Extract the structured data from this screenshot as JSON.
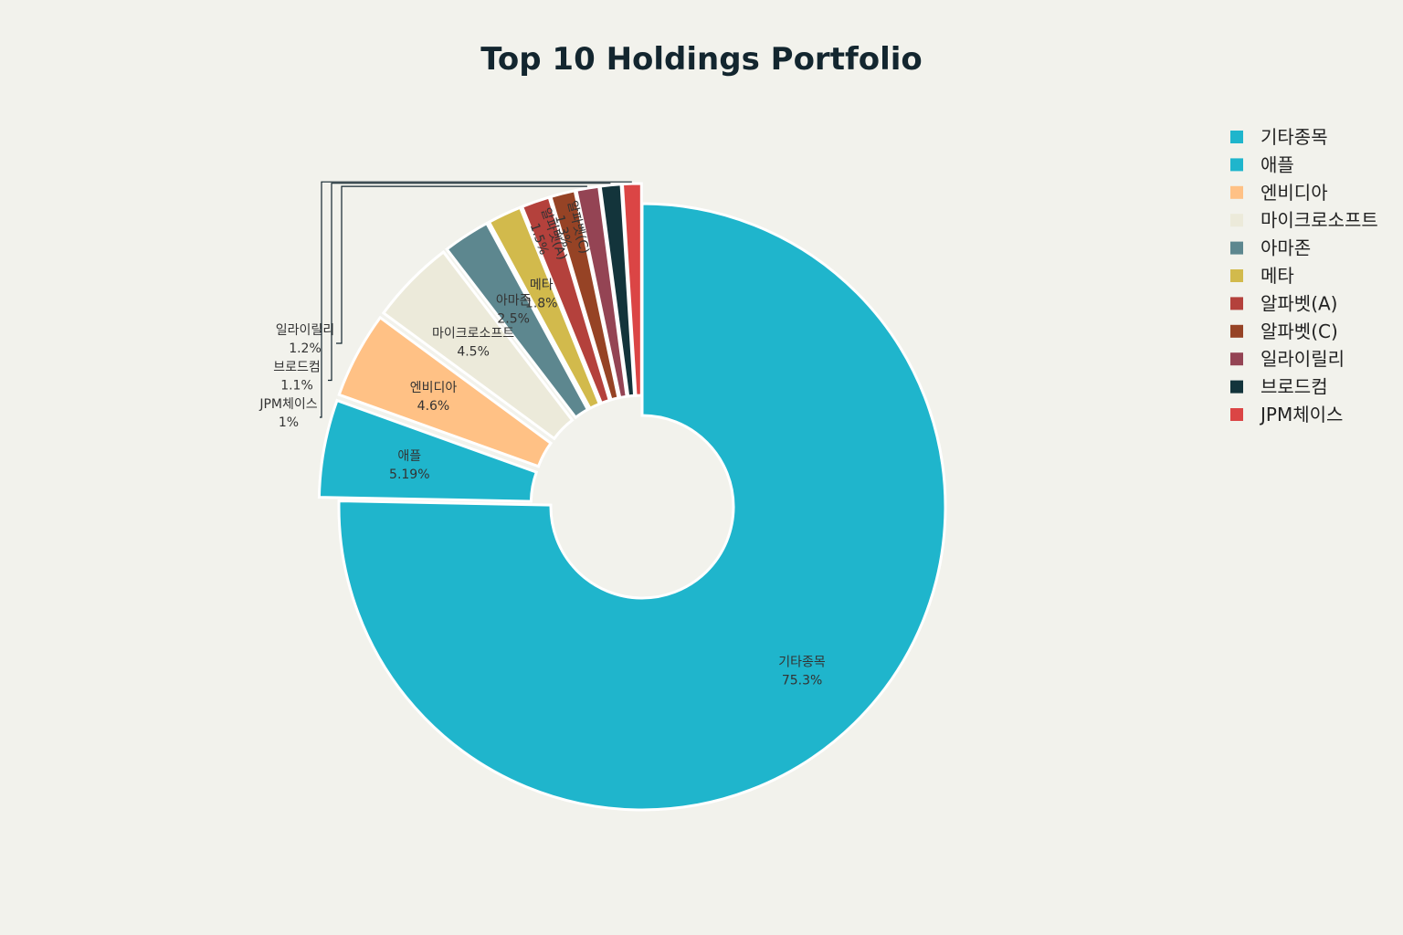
{
  "chart_data": {
    "type": "pie",
    "title": "Top 10 Holdings Portfolio",
    "hole": 0.3,
    "legend_position": "right",
    "slices": [
      {
        "label": "기타종목",
        "value": 75.3,
        "display": "75.3%",
        "color": "#1fb5cc",
        "pull": 0
      },
      {
        "label": "애플",
        "value": 5.19,
        "display": "5.19%",
        "color": "#1fb5cc",
        "pull": 1
      },
      {
        "label": "엔비디아",
        "value": 4.6,
        "display": "4.6%",
        "color": "#ffc185",
        "pull": 1
      },
      {
        "label": "마이크로소프트",
        "value": 4.5,
        "display": "4.5%",
        "color": "#eceada",
        "pull": 1
      },
      {
        "label": "아마존",
        "value": 2.5,
        "display": "2.5%",
        "color": "#5d878f",
        "pull": 1
      },
      {
        "label": "메타",
        "value": 1.8,
        "display": "1.8%",
        "color": "#d2ba4c",
        "pull": 1
      },
      {
        "label": "알파벳(A)",
        "value": 1.5,
        "display": "1.5%",
        "color": "#b4413c",
        "pull": 1
      },
      {
        "label": "알파벳(C)",
        "value": 1.3,
        "display": "1.3%",
        "color": "#964325",
        "pull": 1
      },
      {
        "label": "일라이릴리",
        "value": 1.2,
        "display": "1.2%",
        "color": "#944454",
        "pull": 1
      },
      {
        "label": "브로드컴",
        "value": 1.1,
        "display": "1.1%",
        "color": "#13343b",
        "pull": 1
      },
      {
        "label": "JPM체이스",
        "value": 1.0,
        "display": "1%",
        "color": "#db4545",
        "pull": 1
      }
    ]
  }
}
